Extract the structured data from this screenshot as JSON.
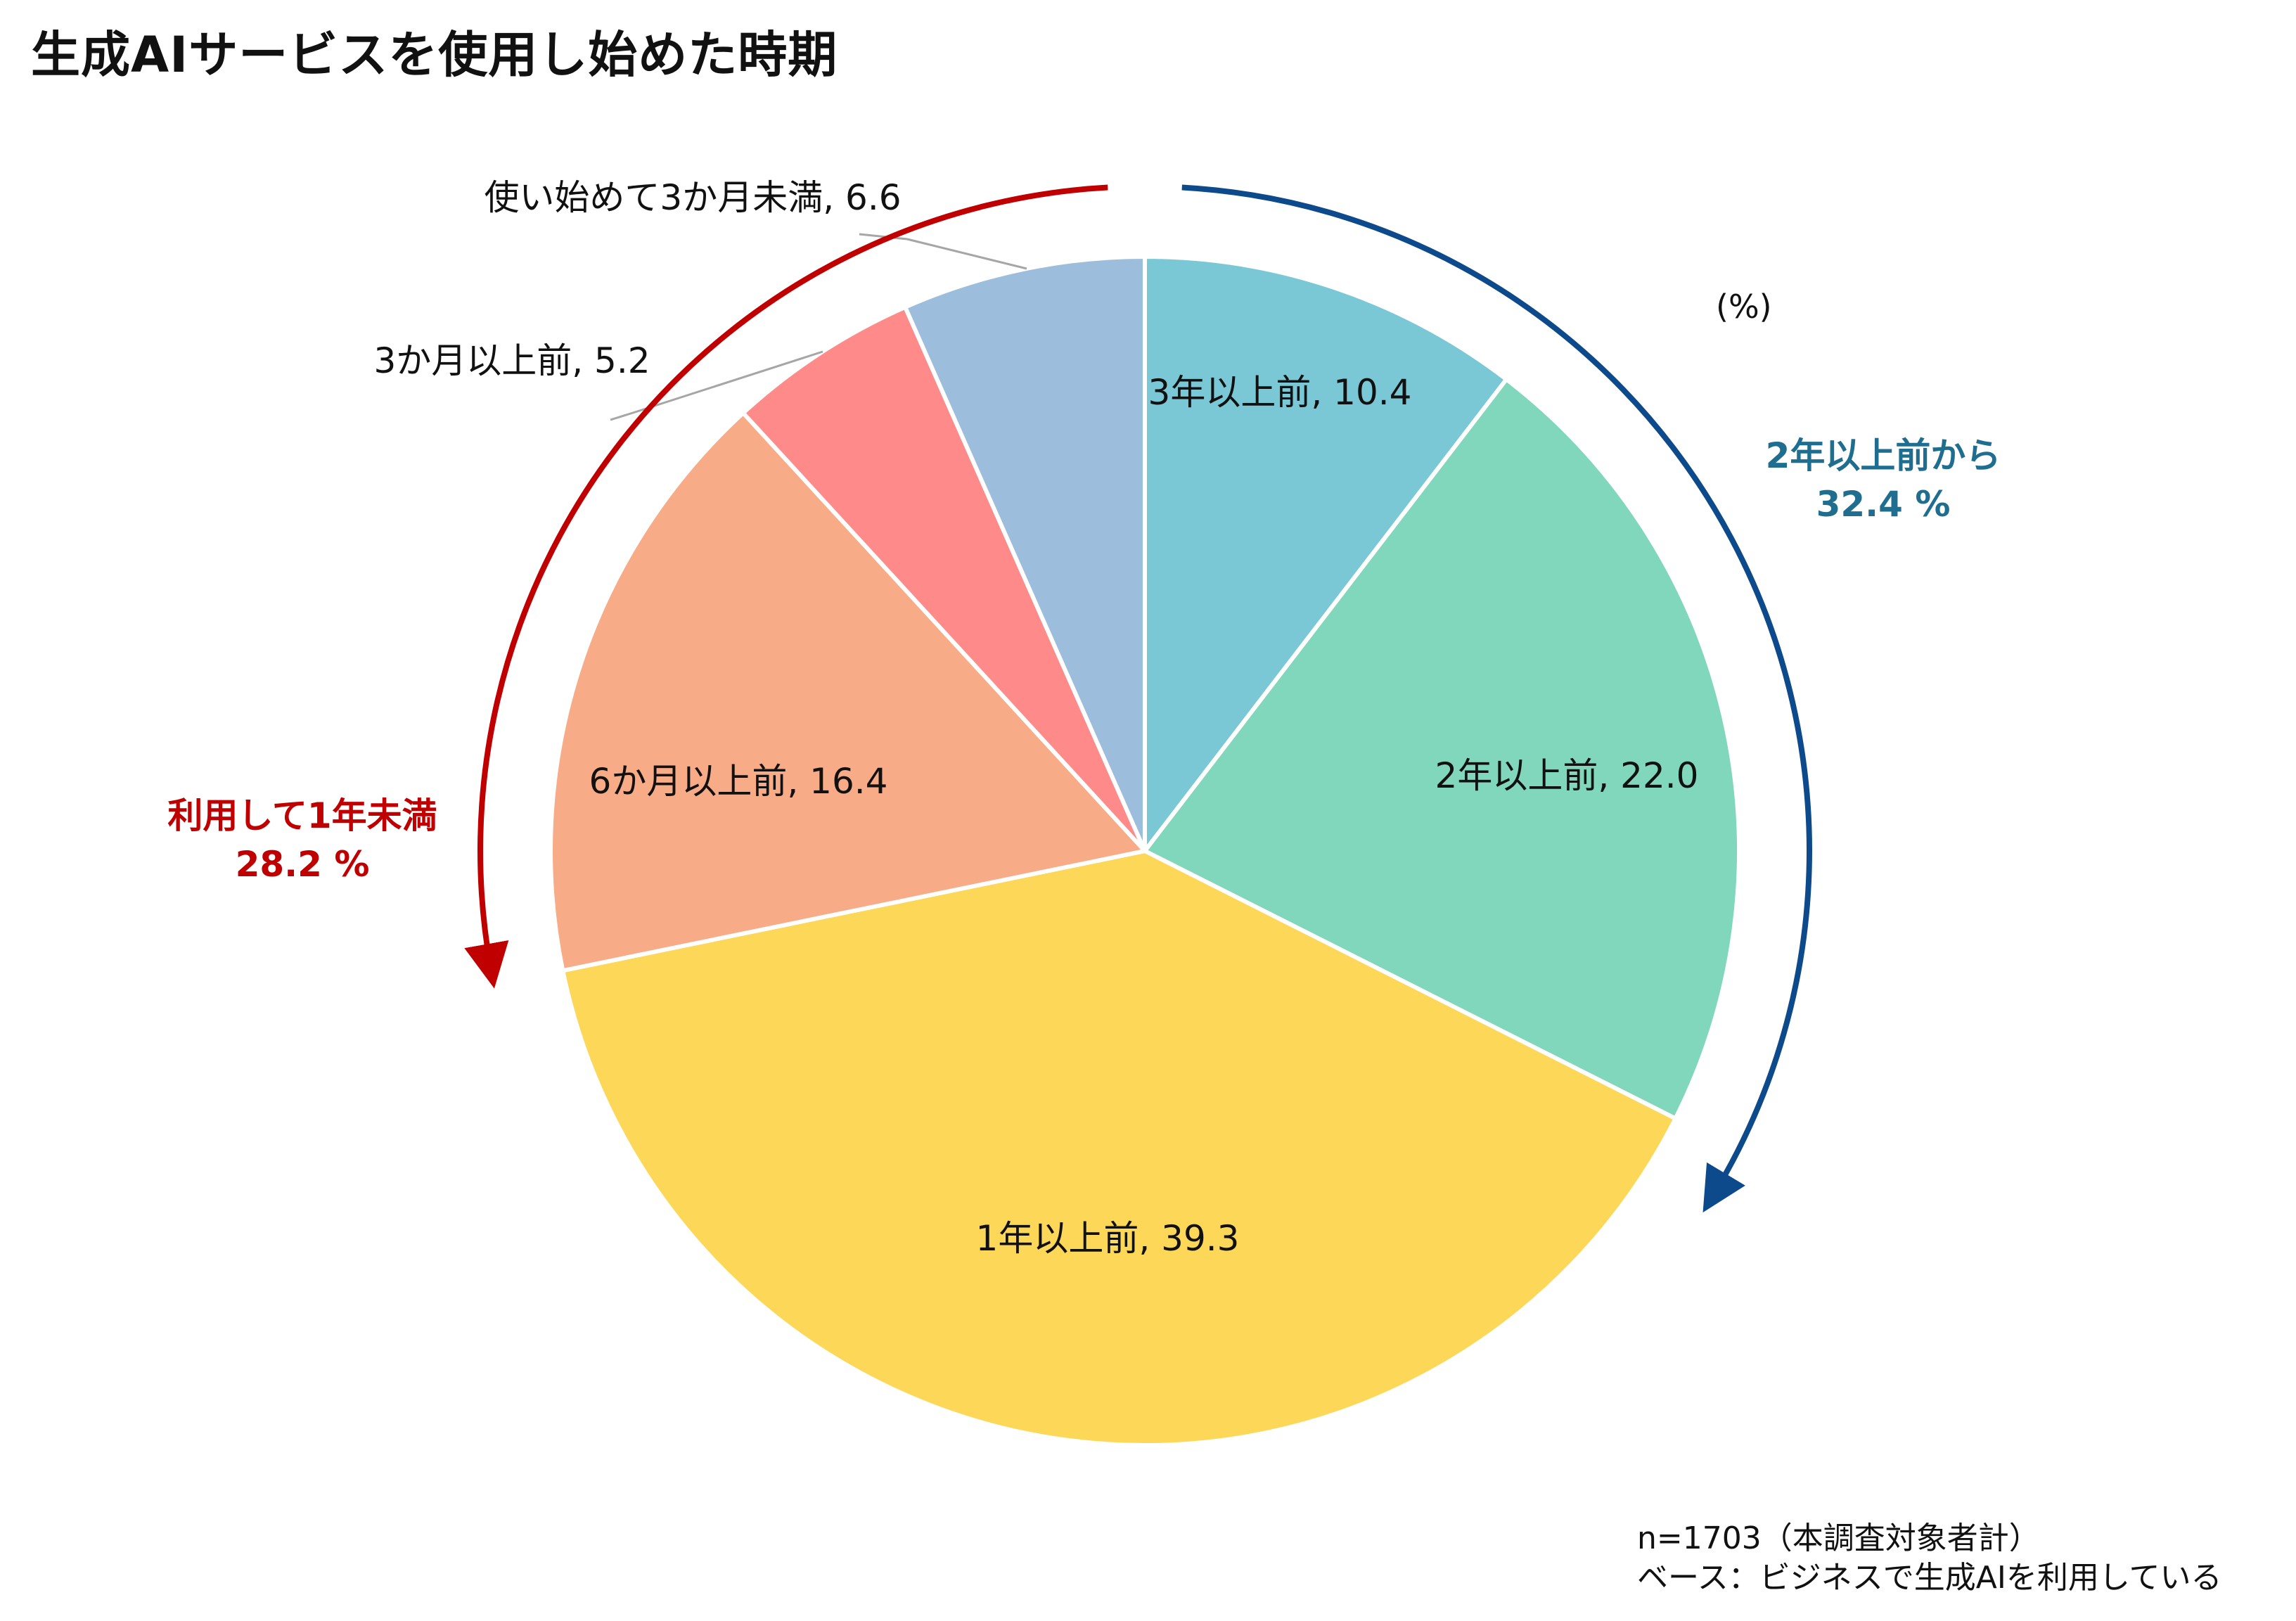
{
  "title": "生成AIサービスを使用し始めた時期",
  "unit": "(%)",
  "footnote": {
    "n": "n=1703（本調査対象者計）",
    "base": "ベース：ビジネスで生成AIを利用している"
  },
  "chart_data": {
    "type": "pie",
    "title": "生成AIサービスを使用し始めた時期",
    "unit": "%",
    "slices": [
      {
        "label": "3年以上前",
        "value": 10.4,
        "display": "3年以上前, 10.4",
        "color": "#7AC8D6"
      },
      {
        "label": "2年以上前",
        "value": 22.0,
        "display": "2年以上前, 22.0",
        "color": "#81D7BB"
      },
      {
        "label": "1年以上前",
        "value": 39.3,
        "display": "1年以上前, 39.3",
        "color": "#FDD757"
      },
      {
        "label": "6か月以上前",
        "value": 16.4,
        "display": "6か月以上前, 16.4",
        "color": "#F7AB86"
      },
      {
        "label": "3か月以上前",
        "value": 5.2,
        "display": "3か月以上前, 5.2",
        "color": "#FF8A8A"
      },
      {
        "label": "使い始めて3か月未満",
        "value": 6.6,
        "display": "使い始めて3か月未満, 6.6",
        "color": "#9DBDDC"
      }
    ],
    "groups": [
      {
        "name": "2年以上前から",
        "total": "32.4 %",
        "color": "#0D4A8C",
        "text_color": "#1F6E8F"
      },
      {
        "name": "利用して1年未満",
        "total": "28.2 %",
        "color": "#C00000",
        "text_color": "#C00000"
      }
    ]
  }
}
